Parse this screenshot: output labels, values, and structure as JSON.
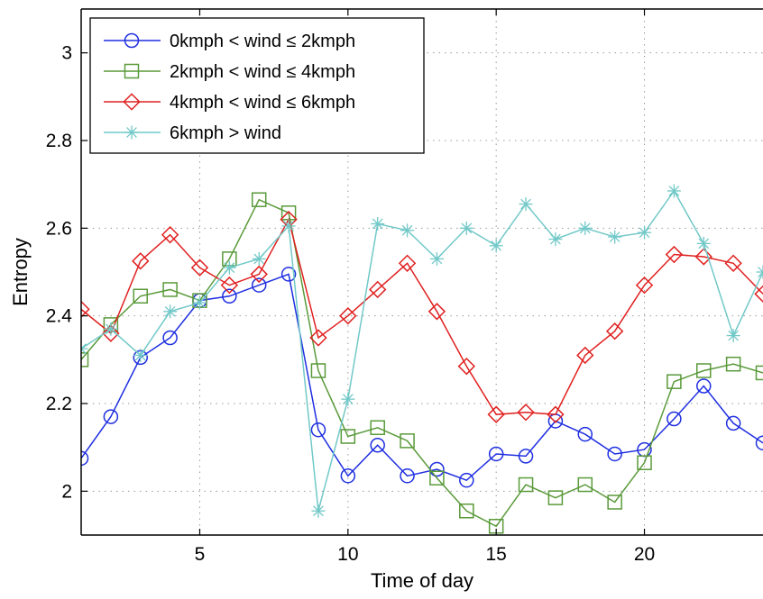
{
  "chart_data": {
    "type": "line",
    "xlabel": "Time of day",
    "ylabel": "Entropy",
    "xlim": [
      1,
      24
    ],
    "ylim": [
      1.9,
      3.1
    ],
    "xticks": [
      5,
      10,
      15,
      20
    ],
    "yticks": [
      2,
      2.2,
      2.4,
      2.6,
      2.8,
      3
    ],
    "ytick_labels": [
      "2",
      "2.2",
      "2.4",
      "2.6",
      "2.8",
      "3"
    ],
    "grid": true,
    "legend_position": "top-left",
    "x": [
      1,
      2,
      3,
      4,
      5,
      6,
      7,
      8,
      9,
      10,
      11,
      12,
      13,
      14,
      15,
      16,
      17,
      18,
      19,
      20,
      21,
      22,
      23,
      24
    ],
    "series": [
      {
        "name": "0kmph < wind ≤ 2kmph",
        "color": "#1f2fe0",
        "marker": "circle",
        "values": [
          2.075,
          2.17,
          2.305,
          2.35,
          2.435,
          2.445,
          2.47,
          2.495,
          2.14,
          2.035,
          2.105,
          2.035,
          2.05,
          2.025,
          2.085,
          2.08,
          2.16,
          2.13,
          2.085,
          2.095,
          2.165,
          2.24,
          2.155,
          2.11
        ]
      },
      {
        "name": "2kmph < wind ≤ 4kmph",
        "color": "#5a9a3a",
        "marker": "square",
        "values": [
          2.3,
          2.38,
          2.445,
          2.46,
          2.435,
          2.53,
          2.665,
          2.635,
          2.275,
          2.125,
          2.145,
          2.115,
          2.03,
          1.955,
          1.92,
          2.015,
          1.985,
          2.015,
          1.975,
          2.065,
          2.25,
          2.275,
          2.29,
          2.27
        ]
      },
      {
        "name": "4kmph < wind ≤ 6kmph",
        "color": "#e02020",
        "marker": "diamond",
        "values": [
          2.415,
          2.36,
          2.525,
          2.585,
          2.51,
          2.47,
          2.495,
          2.62,
          2.35,
          2.4,
          2.46,
          2.52,
          2.41,
          2.285,
          2.175,
          2.18,
          2.175,
          2.31,
          2.365,
          2.47,
          2.54,
          2.535,
          2.52,
          2.45
        ]
      },
      {
        "name": "6kmph > wind",
        "color": "#72c8c8",
        "marker": "star",
        "values": [
          2.325,
          2.37,
          2.31,
          2.41,
          2.43,
          2.51,
          2.53,
          2.605,
          1.955,
          2.21,
          2.61,
          2.595,
          2.53,
          2.6,
          2.56,
          2.655,
          2.575,
          2.6,
          2.58,
          2.59,
          2.685,
          2.565,
          2.355,
          2.5
        ]
      }
    ]
  }
}
